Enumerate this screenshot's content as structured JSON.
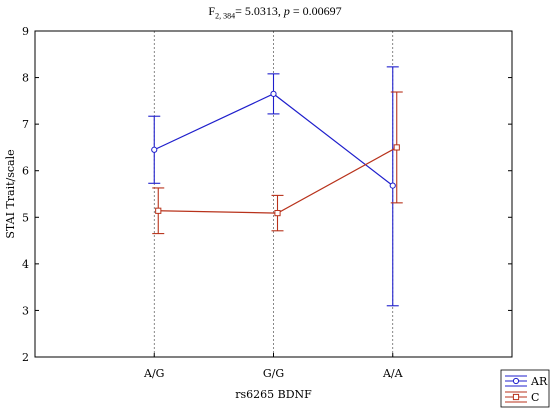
{
  "chart_data": {
    "type": "line",
    "title": {
      "f_label": "F",
      "f_df": "2, 384",
      "f_eq": "= 5.0313, ",
      "p_label": "p",
      "p_eq": " = 0.00697"
    },
    "xlabel": "rs6265 BDNF",
    "ylabel": "STAI Trait/scale",
    "categories": [
      "A/G",
      "G/G",
      "A/A"
    ],
    "ylim": [
      2,
      9
    ],
    "yticks": [
      "2",
      "3",
      "4",
      "5",
      "6",
      "7",
      "8",
      "9"
    ],
    "grid": "vertical-dashed",
    "legend_position": "bottom-right",
    "series": [
      {
        "name": "AR",
        "color": "#1f1fcc",
        "marker": "circle",
        "values": [
          6.45,
          7.65,
          5.68
        ],
        "lower": [
          5.73,
          7.22,
          3.1
        ],
        "upper": [
          7.17,
          8.08,
          8.23
        ]
      },
      {
        "name": "C",
        "color": "#b8321b",
        "marker": "square",
        "values": [
          5.14,
          5.09,
          6.5
        ],
        "lower": [
          4.65,
          4.71,
          5.31
        ],
        "upper": [
          5.63,
          5.47,
          7.69
        ]
      }
    ]
  }
}
